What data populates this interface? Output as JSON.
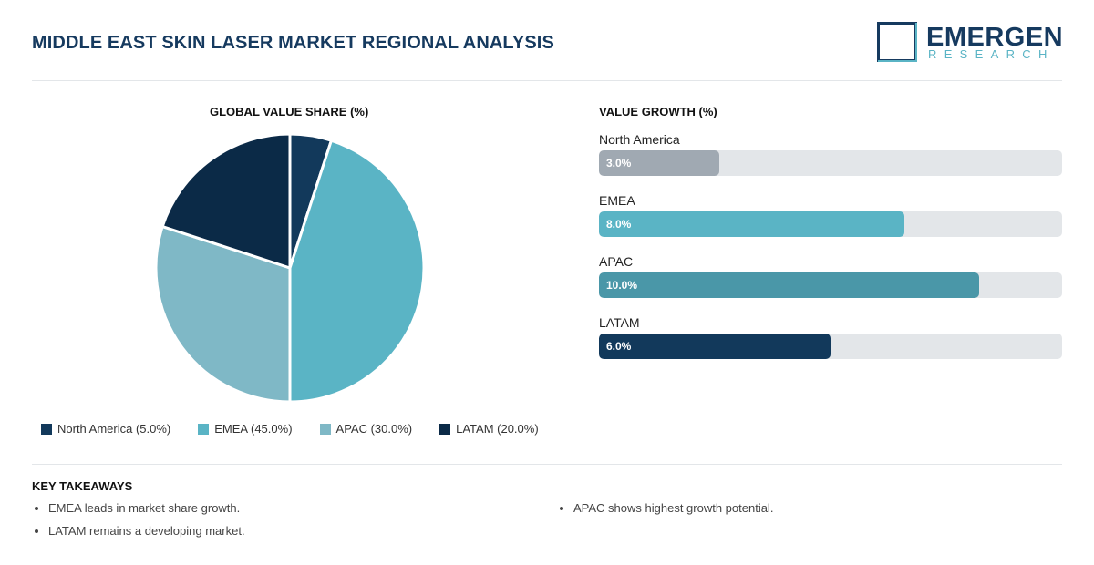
{
  "header": {
    "title": "MIDDLE EAST SKIN LASER MARKET REGIONAL ANALYSIS",
    "logo_word": "EMERGEN",
    "logo_sub": "RESEARCH"
  },
  "pie_section": {
    "heading": "GLOBAL VALUE SHARE (%)",
    "legend": [
      {
        "label": "North America (5.0%)",
        "color": "#12395b"
      },
      {
        "label": "EMEA (45.0%)",
        "color": "#5ab4c5"
      },
      {
        "label": "APAC (30.0%)",
        "color": "#7fb8c6"
      },
      {
        "label": "LATAM (20.0%)",
        "color": "#0b2a47"
      }
    ]
  },
  "bar_section": {
    "heading": "VALUE GROWTH (%)",
    "bars": [
      {
        "label": "North America",
        "value_label": "3.0%",
        "color": "#a0a9b2"
      },
      {
        "label": "EMEA",
        "value_label": "8.0%",
        "color": "#5ab4c5"
      },
      {
        "label": "APAC",
        "value_label": "10.0%",
        "color": "#4a97a8"
      },
      {
        "label": "LATAM",
        "value_label": "6.0%",
        "color": "#12395b"
      }
    ]
  },
  "takeaways": {
    "heading": "KEY TAKEAWAYS",
    "left": [
      "EMEA leads in market share growth.",
      "LATAM remains a developing market."
    ],
    "right": [
      "APAC shows highest growth potential."
    ]
  },
  "chart_data": [
    {
      "type": "pie",
      "title": "GLOBAL VALUE SHARE (%)",
      "categories": [
        "North America",
        "EMEA",
        "APAC",
        "LATAM"
      ],
      "values": [
        5.0,
        45.0,
        30.0,
        20.0
      ],
      "colors": [
        "#12395b",
        "#5ab4c5",
        "#7fb8c6",
        "#0b2a47"
      ],
      "legend": "bottom"
    },
    {
      "type": "bar",
      "orientation": "horizontal",
      "title": "VALUE GROWTH (%)",
      "categories": [
        "North America",
        "EMEA",
        "APAC",
        "LATAM"
      ],
      "values": [
        3.0,
        8.0,
        10.0,
        6.0
      ],
      "fill_fraction": [
        0.26,
        0.66,
        0.82,
        0.5
      ],
      "colors": [
        "#a0a9b2",
        "#5ab4c5",
        "#4a97a8",
        "#12395b"
      ]
    }
  ]
}
